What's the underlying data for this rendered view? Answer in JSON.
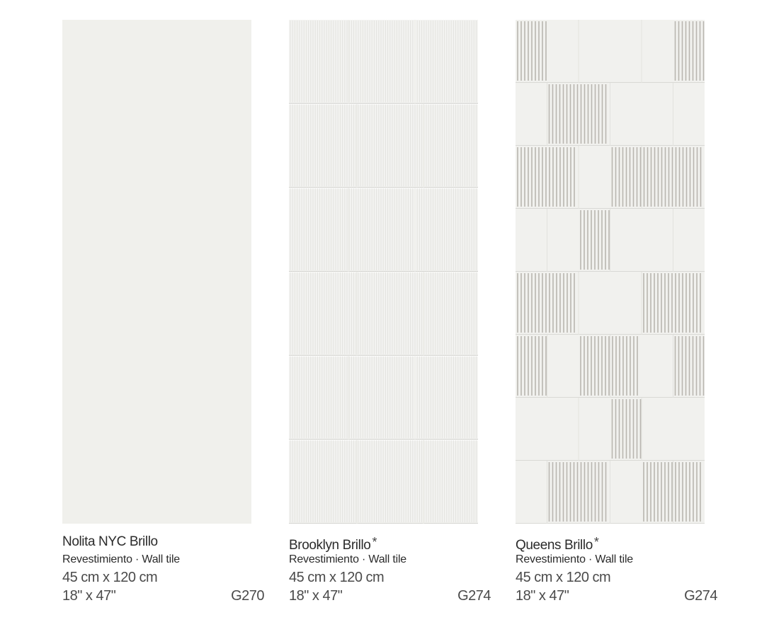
{
  "tiles": [
    {
      "name": "Nolita NYC Brillo",
      "star": "",
      "type": "Revestimiento · Wall tile",
      "size_metric": "45 cm x 120 cm",
      "size_imperial": "18\" x 47\"",
      "code": "G270",
      "pattern": "plain",
      "base_color": "#f0f0ec"
    },
    {
      "name": "Brooklyn Brillo",
      "star": "*",
      "type": "Revestimiento · Wall tile",
      "size_metric": "45 cm x 120 cm",
      "size_imperial": "18\" x 47\"",
      "code": "G274",
      "pattern": "fluted-stack",
      "base_color": "#f3f3f1"
    },
    {
      "name": "Queens Brillo",
      "star": "*",
      "type": "Revestimiento · Wall tile",
      "size_metric": "45 cm x 120 cm",
      "size_imperial": "18\" x 47\"",
      "code": "G274",
      "pattern": "checker-fluted",
      "base_color": "#f1f1ee"
    }
  ]
}
